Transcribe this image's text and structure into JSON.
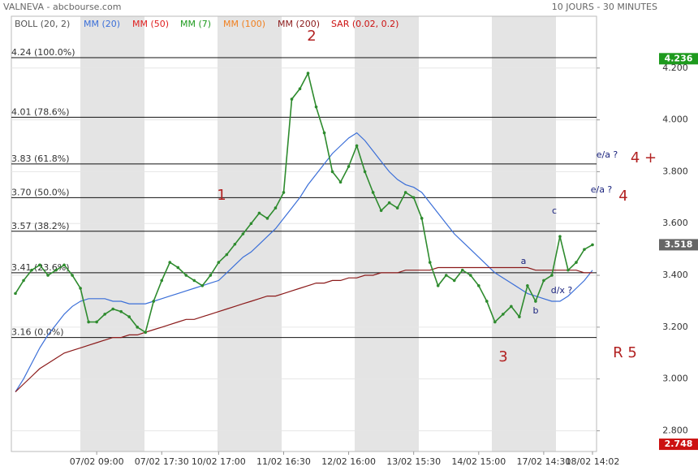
{
  "chart_data": {
    "type": "line",
    "title": "VALNEVA - abcbourse.com",
    "subtitle": "10 JOURS - 30 MINUTES",
    "categories": [
      null,
      null,
      null,
      null,
      null,
      null,
      null,
      null,
      null,
      null,
      "07/02 09:00",
      null,
      null,
      null,
      null,
      null,
      null,
      null,
      "07/02 17:30",
      null,
      null,
      null,
      null,
      null,
      null,
      "10/02 17:00",
      null,
      null,
      null,
      null,
      null,
      null,
      null,
      "11/02 16:30",
      null,
      null,
      null,
      null,
      null,
      null,
      null,
      "12/02 16:00",
      null,
      null,
      null,
      null,
      null,
      null,
      null,
      "13/02 15:30",
      null,
      null,
      null,
      null,
      null,
      null,
      null,
      "14/02 15:00",
      null,
      null,
      null,
      null,
      null,
      null,
      null,
      "17/02 14:30",
      null,
      null,
      null,
      null,
      null,
      "18/02 14:02"
    ],
    "price": {
      "color": "#2e8b2e",
      "values": [
        3.33,
        3.38,
        3.42,
        3.44,
        3.4,
        3.42,
        3.44,
        3.4,
        3.35,
        3.22,
        3.22,
        3.25,
        3.27,
        3.26,
        3.24,
        3.2,
        3.18,
        3.3,
        3.38,
        3.45,
        3.43,
        3.4,
        3.38,
        3.36,
        3.4,
        3.45,
        3.48,
        3.52,
        3.56,
        3.6,
        3.64,
        3.62,
        3.66,
        3.72,
        4.08,
        4.12,
        4.18,
        4.05,
        3.95,
        3.8,
        3.76,
        3.82,
        3.9,
        3.8,
        3.72,
        3.65,
        3.68,
        3.66,
        3.72,
        3.7,
        3.62,
        3.45,
        3.36,
        3.4,
        3.38,
        3.42,
        3.4,
        3.36,
        3.3,
        3.22,
        3.25,
        3.28,
        3.24,
        3.36,
        3.3,
        3.38,
        3.4,
        3.55,
        3.42,
        3.45,
        3.5,
        3.518
      ]
    },
    "series": [
      {
        "name": "BOLL (20, 2)",
        "color": "#555555"
      },
      {
        "name": "MM (20)",
        "color": "#3b6fd8",
        "values": [
          2.95,
          3.0,
          3.06,
          3.12,
          3.17,
          3.21,
          3.25,
          3.28,
          3.3,
          3.31,
          3.31,
          3.31,
          3.3,
          3.3,
          3.29,
          3.29,
          3.29,
          3.3,
          3.31,
          3.32,
          3.33,
          3.34,
          3.35,
          3.36,
          3.37,
          3.38,
          3.41,
          3.44,
          3.47,
          3.49,
          3.52,
          3.55,
          3.58,
          3.62,
          3.66,
          3.7,
          3.75,
          3.79,
          3.83,
          3.87,
          3.9,
          3.93,
          3.95,
          3.92,
          3.88,
          3.84,
          3.8,
          3.77,
          3.75,
          3.74,
          3.72,
          3.68,
          3.64,
          3.6,
          3.56,
          3.53,
          3.5,
          3.47,
          3.44,
          3.41,
          3.39,
          3.37,
          3.35,
          3.33,
          3.32,
          3.31,
          3.3,
          3.3,
          3.32,
          3.35,
          3.38,
          3.42
        ]
      },
      {
        "name": "MM (50)",
        "color": "#e02020"
      },
      {
        "name": "MM (7)",
        "color": "#1e9a1e"
      },
      {
        "name": "MM (100)",
        "color": "#f08020"
      },
      {
        "name": "MM (200)",
        "color": "#8b1a1a",
        "values": [
          2.95,
          2.98,
          3.01,
          3.04,
          3.06,
          3.08,
          3.1,
          3.11,
          3.12,
          3.13,
          3.14,
          3.15,
          3.16,
          3.16,
          3.17,
          3.17,
          3.18,
          3.19,
          3.2,
          3.21,
          3.22,
          3.23,
          3.23,
          3.24,
          3.25,
          3.26,
          3.27,
          3.28,
          3.29,
          3.3,
          3.31,
          3.32,
          3.32,
          3.33,
          3.34,
          3.35,
          3.36,
          3.37,
          3.37,
          3.38,
          3.38,
          3.39,
          3.39,
          3.4,
          3.4,
          3.41,
          3.41,
          3.41,
          3.42,
          3.42,
          3.42,
          3.42,
          3.43,
          3.43,
          3.43,
          3.43,
          3.43,
          3.43,
          3.43,
          3.43,
          3.43,
          3.43,
          3.43,
          3.43,
          3.42,
          3.42,
          3.42,
          3.42,
          3.42,
          3.42,
          3.41,
          3.41
        ]
      },
      {
        "name": "SAR (0.02, 0.2)",
        "color": "#cc1111"
      }
    ],
    "ylim": [
      2.72,
      4.4
    ],
    "yticks": [
      {
        "value": 2.8,
        "label": "2.800"
      },
      {
        "value": 3,
        "label": "3.000"
      },
      {
        "value": 3.2,
        "label": "3.200"
      },
      {
        "value": 3.4,
        "label": "3.400"
      },
      {
        "value": 3.6,
        "label": "3.600"
      },
      {
        "value": 3.8,
        "label": "3.800"
      },
      {
        "value": 4,
        "label": "4.000"
      },
      {
        "value": 4.2,
        "label": "4.200"
      }
    ],
    "levels": [
      {
        "value": 4.24,
        "label": "4.24 (100.0%)"
      },
      {
        "value": 4.01,
        "label": "4.01 (78.6%)"
      },
      {
        "value": 3.83,
        "label": "3.83 (61.8%)"
      },
      {
        "value": 3.7,
        "label": "3.70 (50.0%)"
      },
      {
        "value": 3.57,
        "label": "3.57 (38.2%)"
      },
      {
        "value": 3.41,
        "label": "3.41 (23.6%)"
      },
      {
        "value": 3.16,
        "label": "3.16 (0.0%)"
      }
    ],
    "price_tags": [
      {
        "value": 4.236,
        "label": "4.236",
        "color": "#1e9a1e"
      },
      {
        "value": 3.518,
        "label": "3.518",
        "color": "#666666"
      },
      {
        "value": 2.748,
        "label": "2.748",
        "color": "#cc1111"
      }
    ],
    "annotations": [
      "1",
      "2",
      "3",
      "4",
      "4 +",
      "R 5",
      "e/a ?",
      "e/a ?",
      "a",
      "b",
      "c",
      "d/x ?"
    ]
  }
}
